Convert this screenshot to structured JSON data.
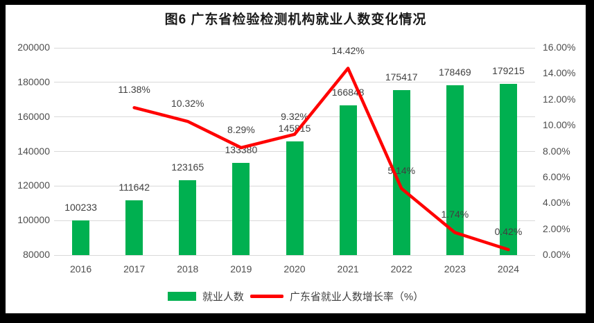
{
  "title": "图6  广东省检验检测机构就业人数变化情况",
  "chart_data": {
    "type": "bar+line combo",
    "title": "图6  广东省检验检测机构就业人数变化情况",
    "categories": [
      "2016",
      "2017",
      "2018",
      "2019",
      "2020",
      "2021",
      "2022",
      "2023",
      "2024"
    ],
    "series": [
      {
        "name": "就业人数",
        "type": "bar",
        "axis": "left",
        "color": "#00B050",
        "values": [
          100233,
          111642,
          123165,
          133380,
          145815,
          166848,
          175417,
          178469,
          179215
        ],
        "data_labels": [
          "100233",
          "111642",
          "123165",
          "133380",
          "145815",
          "166848",
          "175417",
          "178469",
          "179215"
        ]
      },
      {
        "name": "广东省就业人数增长率（%）",
        "type": "line",
        "axis": "right",
        "color": "#FF0000",
        "values": [
          null,
          11.38,
          10.32,
          8.29,
          9.32,
          14.42,
          5.14,
          1.74,
          0.42
        ],
        "data_labels": [
          "",
          "11.38%",
          "10.32%",
          "8.29%",
          "9.32%",
          "14.42%",
          "5.14%",
          "1.74%",
          "0.42%"
        ]
      }
    ],
    "left_axis": {
      "min": 80000,
      "max": 200000,
      "step": 20000,
      "tick_labels": [
        "80000",
        "100000",
        "120000",
        "140000",
        "160000",
        "180000",
        "200000"
      ]
    },
    "right_axis": {
      "min": 0,
      "max": 16,
      "step": 2,
      "tick_labels": [
        "0.00%",
        "2.00%",
        "4.00%",
        "6.00%",
        "8.00%",
        "10.00%",
        "12.00%",
        "14.00%",
        "16.00%"
      ]
    },
    "grid": true,
    "legend_position": "bottom"
  },
  "colors": {
    "bar_green": "#00B050",
    "line_red": "#FF0000",
    "gridline": "#D9D9D9",
    "axis_text": "#4D4D4D",
    "background": "#FFFFFF",
    "frame": "#000000"
  }
}
